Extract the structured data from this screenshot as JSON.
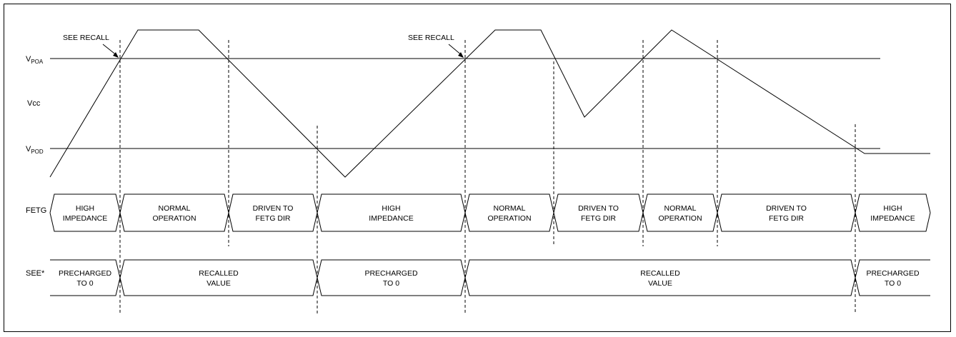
{
  "signals": {
    "vpoa": {
      "main": "V",
      "sub": "POA"
    },
    "vcc": "Vcc",
    "vpod": {
      "main": "V",
      "sub": "POD"
    },
    "fetg": "FETG",
    "see": "SEE*"
  },
  "annotations": {
    "see_recall_1": "SEE RECALL",
    "see_recall_2": "SEE RECALL"
  },
  "fetg_segments": [
    {
      "line1": "HIGH",
      "line2": "IMPEDANCE"
    },
    {
      "line1": "NORMAL",
      "line2": "OPERATION"
    },
    {
      "line1": "DRIVEN TO",
      "line2": "FETG DIR"
    },
    {
      "line1": "HIGH",
      "line2": "IMPEDANCE"
    },
    {
      "line1": "NORMAL",
      "line2": "OPERATION"
    },
    {
      "line1": "DRIVEN TO",
      "line2": "FETG DIR"
    },
    {
      "line1": "NORMAL",
      "line2": "OPERATION"
    },
    {
      "line1": "DRIVEN TO",
      "line2": "FETG DIR"
    },
    {
      "line1": "HIGH",
      "line2": "IMPEDANCE"
    }
  ],
  "see_segments": [
    {
      "line1": "PRECHARGED",
      "line2": "TO 0"
    },
    {
      "line1": "RECALLED",
      "line2": "VALUE"
    },
    {
      "line1": "PRECHARGED",
      "line2": "TO 0"
    },
    {
      "line1": "RECALLED",
      "line2": "VALUE"
    },
    {
      "line1": "PRECHARGED",
      "line2": "TO 0"
    }
  ]
}
